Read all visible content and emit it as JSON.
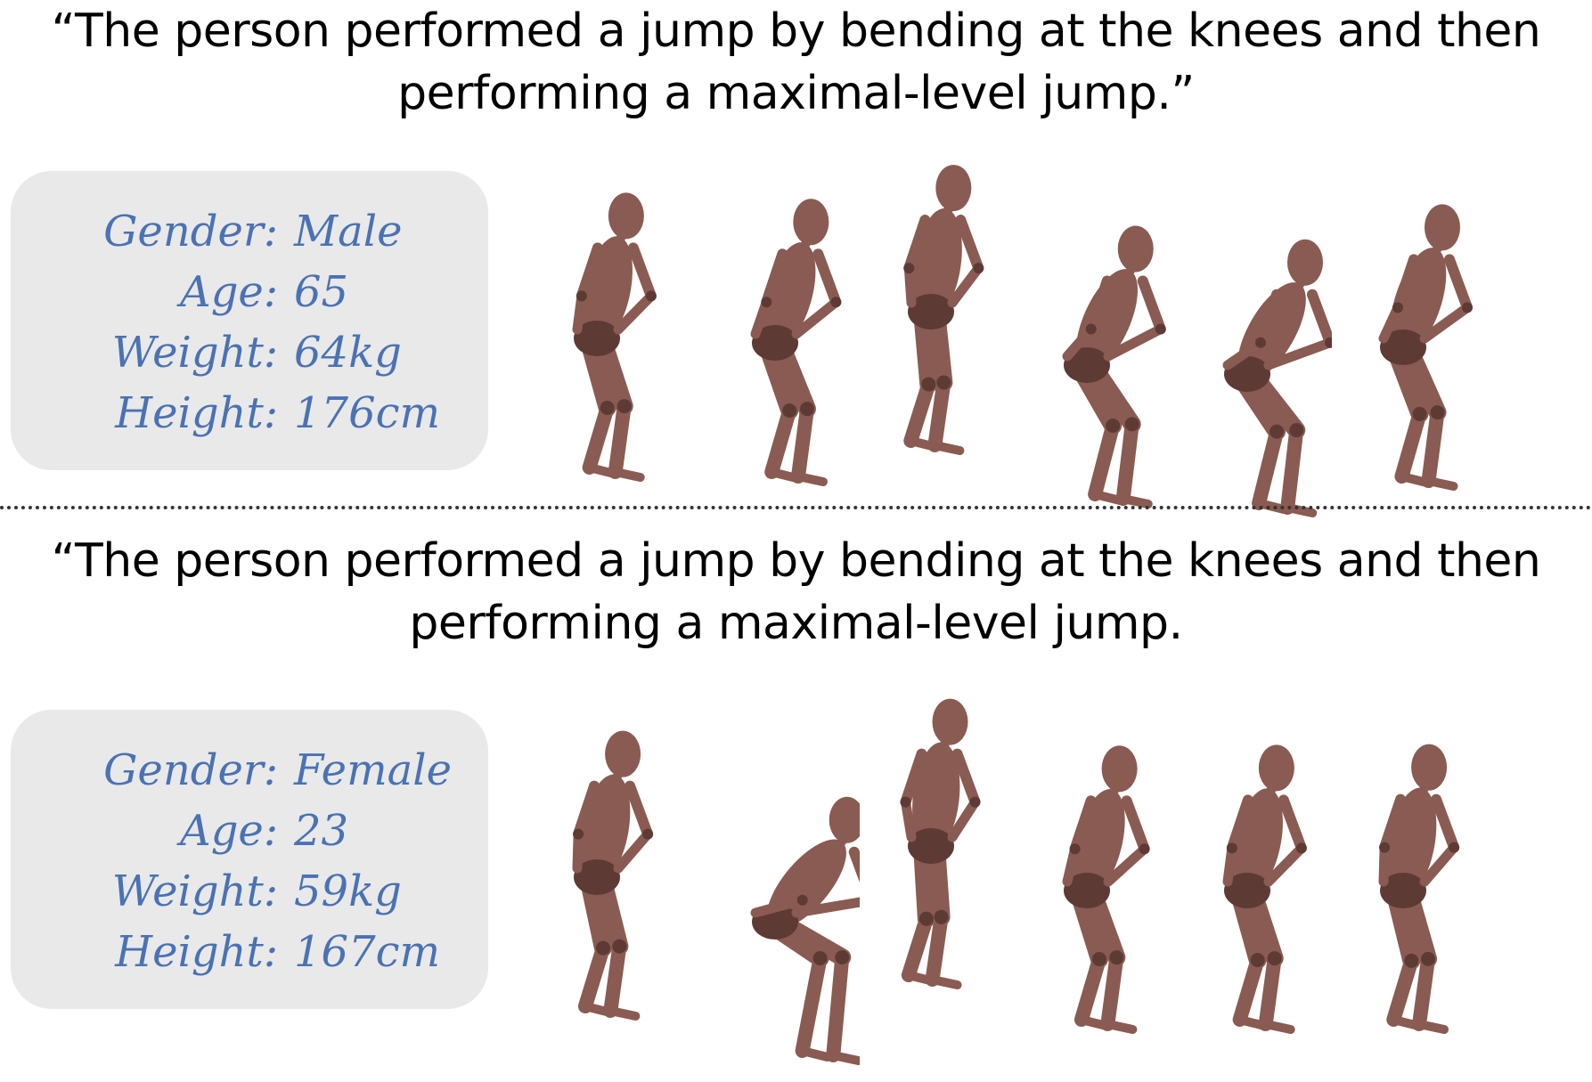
{
  "samples": [
    {
      "caption_line1": "“The person performed a jump by bending at the knees and then",
      "caption_line2": "performing a maximal-level jump.”",
      "attributes": [
        {
          "label": "Gender:",
          "value": "Male"
        },
        {
          "label": "Age:",
          "value": "65"
        },
        {
          "label": "Weight:",
          "value": "64kg"
        },
        {
          "label": "Height:",
          "value": "176cm"
        }
      ],
      "frame_count": 6
    },
    {
      "caption_line1": "“The person performed a jump by bending at the knees and then",
      "caption_line2": "performing a maximal-level jump.",
      "attributes": [
        {
          "label": "Gender:",
          "value": "Female"
        },
        {
          "label": "Age:",
          "value": "23"
        },
        {
          "label": "Weight:",
          "value": "59kg"
        },
        {
          "label": "Height:",
          "value": "167cm"
        }
      ],
      "frame_count": 6
    }
  ],
  "colors": {
    "attribute_text": "#4a72b4",
    "info_box_bg": "#e9e9e9",
    "figure_fill": "#8a5b52",
    "figure_shade": "#5e3a35",
    "separator": "#333333"
  }
}
